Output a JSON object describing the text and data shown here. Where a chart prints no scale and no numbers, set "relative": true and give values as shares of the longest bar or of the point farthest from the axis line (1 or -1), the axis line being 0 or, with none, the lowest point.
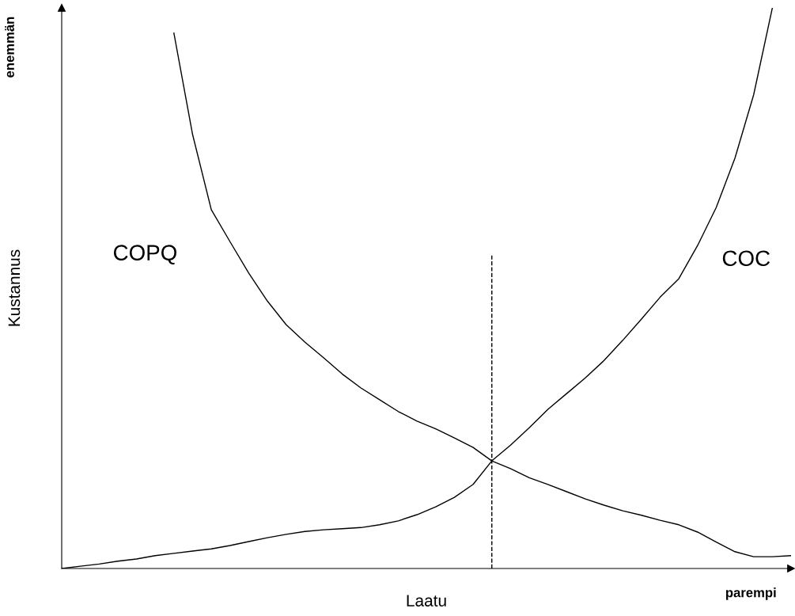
{
  "chart_data": {
    "type": "line",
    "relative": true,
    "xlabel": "Laatu",
    "ylabel": "Kustannus",
    "categories": [
      null,
      null,
      null,
      null,
      null,
      null,
      null,
      null,
      null,
      null,
      null,
      null,
      null,
      null,
      null,
      null,
      null,
      null,
      null,
      null,
      null,
      null,
      null,
      null,
      null,
      null,
      null,
      null,
      null,
      null,
      null,
      null,
      null,
      null,
      null,
      null,
      null,
      null,
      null,
      null
    ],
    "series": [
      {
        "name": "COPQ",
        "color": "#000000",
        "values": [
          null,
          null,
          null,
          null,
          null,
          null,
          0.955,
          0.774,
          0.64,
          0.583,
          0.527,
          0.477,
          0.435,
          0.404,
          0.376,
          0.347,
          0.322,
          0.301,
          0.28,
          0.263,
          0.249,
          0.233,
          0.216,
          0.192,
          0.178,
          0.162,
          0.15,
          0.137,
          0.124,
          0.113,
          0.103,
          0.095,
          0.086,
          0.078,
          0.065,
          0.047,
          0.03,
          0.021,
          0.021,
          0.023
        ]
      },
      {
        "name": "COC",
        "color": "#000000",
        "values": [
          0,
          0.004,
          0.008,
          0.013,
          0.017,
          0.023,
          0.027,
          0.031,
          0.035,
          0.041,
          0.048,
          0.055,
          0.061,
          0.066,
          0.069,
          0.071,
          0.073,
          0.078,
          0.085,
          0.096,
          0.11,
          0.127,
          0.15,
          0.192,
          0.22,
          0.251,
          0.284,
          0.312,
          0.34,
          0.371,
          0.407,
          0.445,
          0.484,
          0.517,
          0.576,
          0.644,
          0.732,
          0.845,
          1.0,
          null
        ]
      }
    ],
    "annotations": [
      "enemmän",
      "parempi"
    ],
    "legend": false,
    "marker": "none",
    "line_style": "solid"
  }
}
